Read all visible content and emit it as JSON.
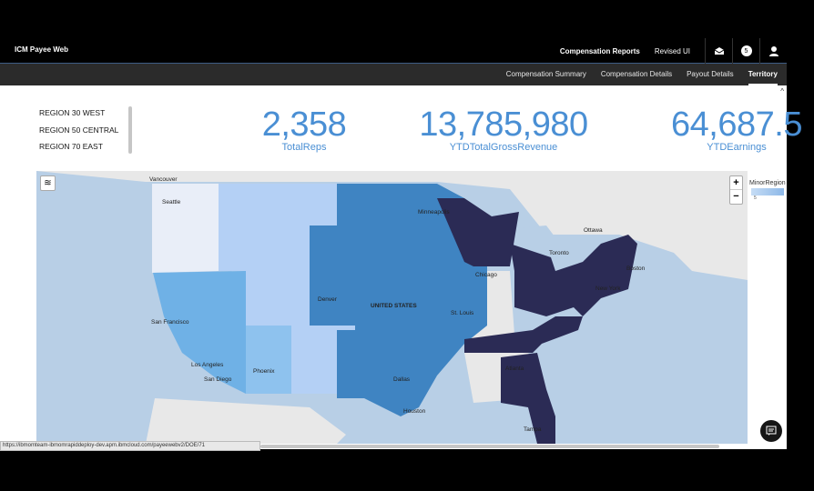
{
  "header": {
    "app_title": "ICM Payee Web",
    "links": [
      "Compensation Reports",
      "Revised UI"
    ],
    "notification_count": "5"
  },
  "subnav": {
    "tabs": [
      "Compensation Summary",
      "Compensation Details",
      "Payout Details",
      "Territory"
    ],
    "active_tab": "Territory"
  },
  "regions": [
    "REGION 30 WEST",
    "REGION 50 CENTRAL",
    "REGION 70 EAST"
  ],
  "kpis": [
    {
      "value": "2,358",
      "label": "TotalReps"
    },
    {
      "value": "13,785,980",
      "label": "YTDTotalGrossRevenue"
    },
    {
      "value": "64,687.5",
      "label": "YTDEarnings"
    }
  ],
  "map": {
    "legend_title": "MinorRegion",
    "legend_min": "5",
    "zoom_in": "+",
    "zoom_out": "−",
    "cities": [
      "Vancouver",
      "Seattle",
      "Minneapolis",
      "Ottawa",
      "Toronto",
      "Chicago",
      "Boston",
      "Denver",
      "UNITED STATES",
      "New York",
      "St. Louis",
      "San Francisco",
      "Los Angeles",
      "San Diego",
      "Phoenix",
      "Dallas",
      "Atlanta",
      "Houston",
      "Tampa"
    ],
    "colors": {
      "water": "#b8cfe6",
      "land": "#e8e8e8",
      "west_light": "#e9eef8",
      "mountain": "#b4d0f5",
      "pacific": "#6fb1e6",
      "southwest": "#8ec2ee",
      "central": "#3f84c2",
      "east": "#2b2b55"
    }
  },
  "status_url": "https://ibmomteam-ibmomrapiddeploy-dev.apm.ibmcloud.com/payeewebv2/DOE/71"
}
